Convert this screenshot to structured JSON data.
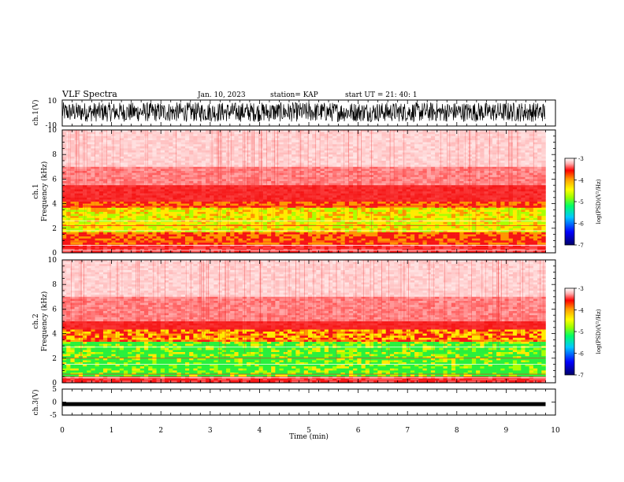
{
  "header": {
    "title": "VLF Spectra",
    "date": "Jan. 10, 2023",
    "station": "station= KAP",
    "start_time": "start UT =  21: 40: 1"
  },
  "chart_data": [
    {
      "type": "line",
      "panel": "ch1-waveform",
      "ylabel": "ch.1(V)",
      "ylim": [
        -10,
        10
      ],
      "yticks": [
        "10",
        "-10"
      ],
      "xlim": [
        0,
        10
      ],
      "description_series": "noisy voltage trace concentrated between about -7 and 8 V",
      "color": "#000000"
    },
    {
      "type": "heatmap",
      "panel": "ch1-spectrogram",
      "ylabel": "ch.1\nFrequency (kHz)",
      "ylabel_line1": "ch.1",
      "ylabel_line2": "Frequency (kHz)",
      "ylim": [
        0,
        10
      ],
      "yticks": [
        "0",
        "2",
        "4",
        "6",
        "8",
        "10"
      ],
      "xlim": [
        0,
        10
      ],
      "data_end_min": 9.8,
      "colorbar": {
        "label": "log(PSD)(V²/Hz)",
        "ticks": [
          "-3",
          "-4",
          "-5",
          "-6",
          "-7"
        ],
        "range": [
          -7,
          -3
        ],
        "colors": [
          "#00006a",
          "#0000ff",
          "#00c8ff",
          "#00ff66",
          "#9bff00",
          "#ffff00",
          "#ff9a00",
          "#ff0000",
          "#ffffff"
        ]
      },
      "bands": [
        {
          "f_low": 0,
          "f_high": 0.7,
          "level": "red/white lines"
        },
        {
          "f_low": 0.7,
          "f_high": 1.5,
          "level": "yellow-red"
        },
        {
          "f_low": 1.5,
          "f_high": 3.8,
          "level": "yellow-green"
        },
        {
          "f_low": 3.8,
          "f_high": 5.5,
          "level": "red"
        },
        {
          "f_low": 5.5,
          "f_high": 10,
          "level": "faint red to white"
        }
      ]
    },
    {
      "type": "heatmap",
      "panel": "ch2-spectrogram",
      "ylabel_line1": "ch.2",
      "ylabel_line2": "Frequency (kHz)",
      "ylim": [
        0,
        10
      ],
      "yticks": [
        "0",
        "2",
        "4",
        "6",
        "8",
        "10"
      ],
      "xlim": [
        0,
        10
      ],
      "data_end_min": 9.8,
      "colorbar": {
        "label": "log(PSD)(V²/Hz)",
        "ticks": [
          "-3",
          "-4",
          "-5",
          "-6",
          "-7"
        ],
        "range": [
          -7,
          -3
        ]
      },
      "bands": [
        {
          "f_low": 0,
          "f_high": 0.5,
          "level": "red/white lines"
        },
        {
          "f_low": 0.5,
          "f_high": 3.3,
          "level": "green"
        },
        {
          "f_low": 3.3,
          "f_high": 4.5,
          "level": "yellow-red"
        },
        {
          "f_low": 4.5,
          "f_high": 10,
          "level": "faint red to white"
        }
      ]
    },
    {
      "type": "line",
      "panel": "ch3-waveform",
      "ylabel": "ch.3(V)",
      "ylim": [
        -5,
        5
      ],
      "yticks": [
        "5",
        "0",
        "-5"
      ],
      "xlim": [
        0,
        10
      ],
      "xlabel": "Time (min)",
      "xticks": [
        "0",
        "1",
        "2",
        "3",
        "4",
        "5",
        "6",
        "7",
        "8",
        "9",
        "10"
      ],
      "series_level_V": -0.8,
      "color": "#000000"
    }
  ]
}
